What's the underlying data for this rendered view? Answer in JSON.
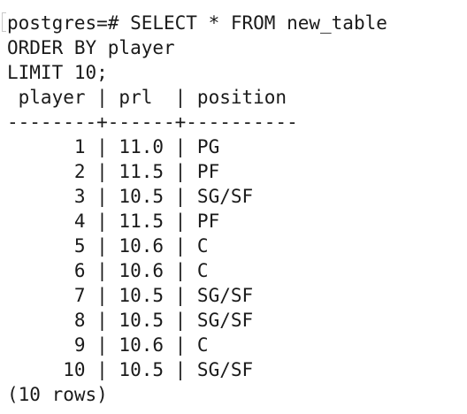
{
  "terminal": {
    "prompt": "postgres=# ",
    "query": [
      "SELECT * FROM new_table",
      "ORDER BY player",
      "LIMIT 10;"
    ],
    "header": " player | prl  | position ",
    "separator": "--------+------+----------",
    "rows": [
      "      1 | 11.0 | PG",
      "      2 | 11.5 | PF",
      "      3 | 10.5 | SG/SF",
      "      4 | 11.5 | PF",
      "      5 | 10.6 | C",
      "      6 | 10.6 | C",
      "      7 | 10.5 | SG/SF",
      "      8 | 10.5 | SG/SF",
      "      9 | 10.6 | C",
      "     10 | 10.5 | SG/SF"
    ],
    "footer": "(10 rows)"
  }
}
